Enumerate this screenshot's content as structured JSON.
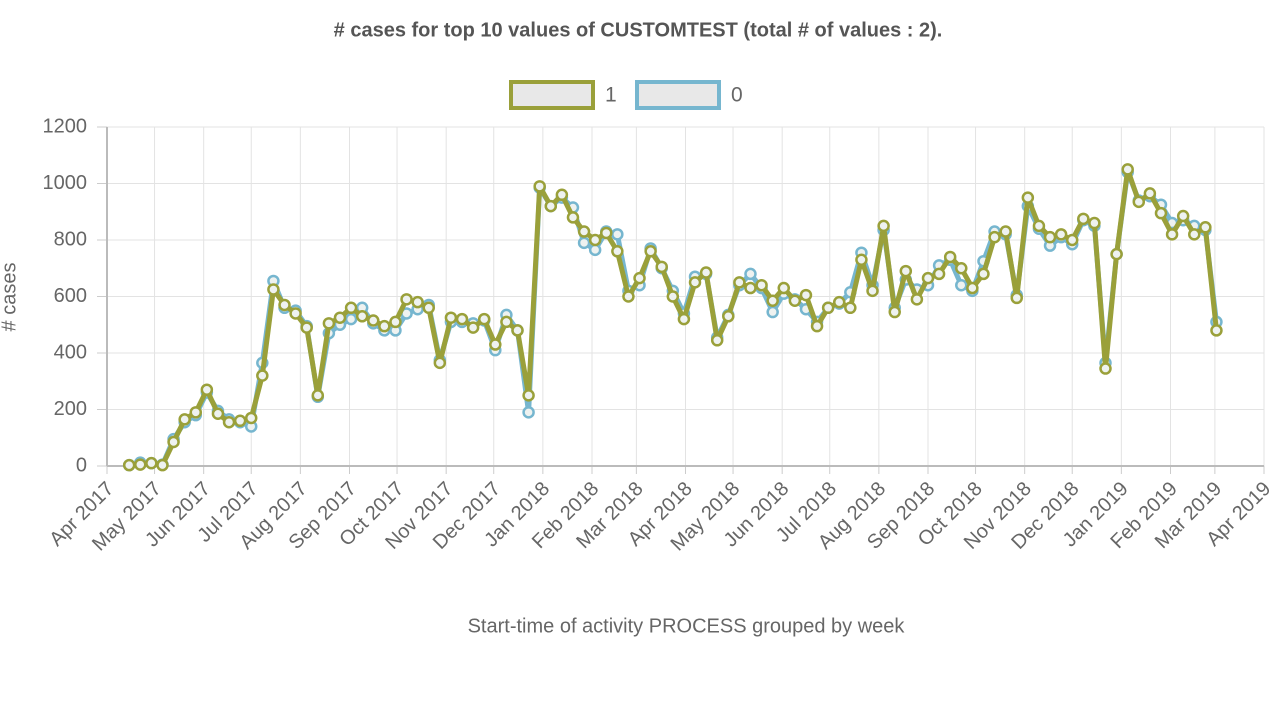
{
  "chart_data": {
    "type": "line",
    "title": "# cases for top 10 values of CUSTOMTEST (total # of values : 2).",
    "x_label": "Start-time of activity PROCESS grouped by week",
    "y_label": "# cases",
    "x": [
      14,
      21,
      28,
      35,
      42,
      49,
      56,
      63,
      70,
      77,
      84,
      91,
      98,
      105,
      112,
      119,
      126,
      133,
      140,
      147,
      154,
      161,
      168,
      175,
      182,
      189,
      196,
      203,
      210,
      217,
      224,
      231,
      238,
      245,
      252,
      259,
      266,
      273,
      280,
      287,
      294,
      301,
      308,
      315,
      322,
      329,
      336,
      343,
      350,
      357,
      364,
      371,
      378,
      385,
      392,
      399,
      406,
      413,
      420,
      427,
      434,
      441,
      448,
      455,
      462,
      469,
      476,
      483,
      490,
      497,
      504,
      511,
      518,
      525,
      532,
      539,
      546,
      553,
      560,
      567,
      574,
      581,
      588,
      595,
      602,
      609,
      616,
      623,
      630,
      637,
      644,
      651,
      658,
      665,
      672,
      679,
      686,
      693,
      700
    ],
    "series": [
      {
        "name": "1",
        "color": "#9aa03a",
        "values": [
          3,
          5,
          10,
          3,
          85,
          165,
          190,
          270,
          185,
          155,
          160,
          170,
          320,
          625,
          570,
          540,
          490,
          250,
          505,
          525,
          560,
          530,
          515,
          495,
          510,
          590,
          580,
          560,
          365,
          525,
          520,
          490,
          520,
          430,
          510,
          480,
          250,
          990,
          920,
          960,
          880,
          830,
          800,
          825,
          760,
          600,
          665,
          760,
          705,
          600,
          520,
          650,
          685,
          445,
          530,
          650,
          630,
          640,
          585,
          630,
          585,
          605,
          495,
          560,
          580,
          560,
          730,
          620,
          850,
          545,
          690,
          590,
          665,
          680,
          740,
          700,
          630,
          680,
          810,
          830,
          595,
          950,
          850,
          810,
          820,
          800,
          875,
          860,
          345,
          750,
          1050,
          935,
          965,
          895,
          820,
          885,
          820,
          845,
          480
        ]
      },
      {
        "name": "0",
        "color": "#76b6cf",
        "values": [
          3,
          12,
          10,
          5,
          95,
          155,
          180,
          260,
          195,
          165,
          155,
          140,
          365,
          655,
          560,
          550,
          495,
          245,
          470,
          500,
          520,
          560,
          505,
          480,
          480,
          540,
          555,
          570,
          375,
          510,
          510,
          505,
          515,
          410,
          535,
          480,
          190,
          985,
          920,
          950,
          915,
          790,
          765,
          830,
          820,
          620,
          640,
          770,
          700,
          620,
          540,
          670,
          680,
          455,
          535,
          640,
          680,
          630,
          545,
          610,
          590,
          555,
          510,
          560,
          575,
          615,
          755,
          640,
          835,
          560,
          660,
          625,
          640,
          710,
          730,
          640,
          620,
          725,
          830,
          820,
          605,
          920,
          840,
          780,
          810,
          785,
          870,
          850,
          365,
          750,
          1040,
          940,
          955,
          925,
          860,
          870,
          850,
          835,
          510
        ]
      }
    ],
    "xlim": [
      0,
      730
    ],
    "xticks": [
      {
        "value": 0,
        "label": "Apr 2017"
      },
      {
        "value": 30,
        "label": "May 2017"
      },
      {
        "value": 61,
        "label": "Jun 2017"
      },
      {
        "value": 91,
        "label": "Jul 2017"
      },
      {
        "value": 122,
        "label": "Aug 2017"
      },
      {
        "value": 153,
        "label": "Sep 2017"
      },
      {
        "value": 183,
        "label": "Oct 2017"
      },
      {
        "value": 214,
        "label": "Nov 2017"
      },
      {
        "value": 244,
        "label": "Dec 2017"
      },
      {
        "value": 275,
        "label": "Jan 2018"
      },
      {
        "value": 306,
        "label": "Feb 2018"
      },
      {
        "value": 334,
        "label": "Mar 2018"
      },
      {
        "value": 365,
        "label": "Apr 2018"
      },
      {
        "value": 395,
        "label": "May 2018"
      },
      {
        "value": 426,
        "label": "Jun 2018"
      },
      {
        "value": 456,
        "label": "Jul 2018"
      },
      {
        "value": 487,
        "label": "Aug 2018"
      },
      {
        "value": 518,
        "label": "Sep 2018"
      },
      {
        "value": 548,
        "label": "Oct 2018"
      },
      {
        "value": 579,
        "label": "Nov 2018"
      },
      {
        "value": 609,
        "label": "Dec 2018"
      },
      {
        "value": 640,
        "label": "Jan 2019"
      },
      {
        "value": 671,
        "label": "Feb 2019"
      },
      {
        "value": 699,
        "label": "Mar 2019"
      },
      {
        "value": 730,
        "label": "Apr 2019"
      }
    ],
    "ylim": [
      0,
      1200
    ],
    "yticks": [
      0,
      200,
      400,
      600,
      800,
      1000,
      1200
    ],
    "grid": true,
    "legend": "top"
  }
}
